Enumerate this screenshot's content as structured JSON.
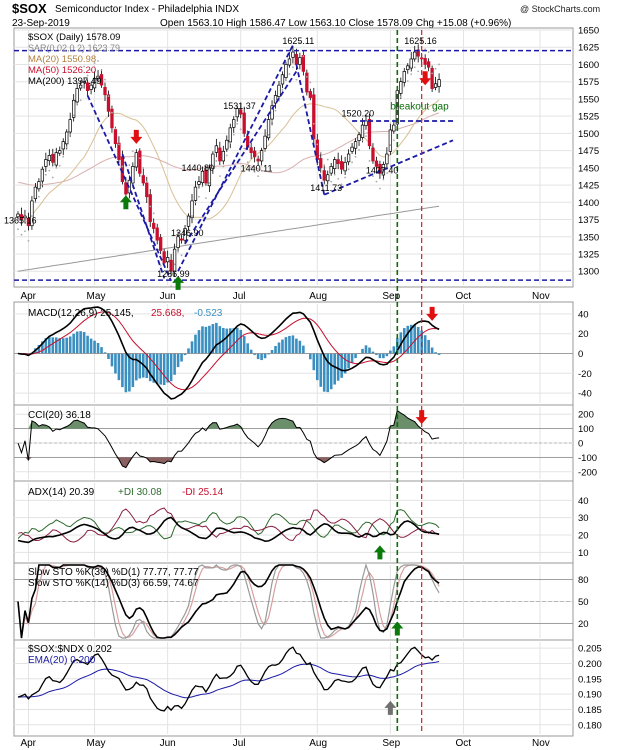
{
  "header": {
    "symbol": "$SOX",
    "index_name": "Semiconductor Index - Philadelphia INDX",
    "watermark": "@ StockCharts.com",
    "date": "23-Sep-2019",
    "ohlc_text": "Open 1563.10  High 1586.47  Low 1563.10  Close 1578.09  Chg +15.08 (+0.96%)"
  },
  "colors": {
    "up": "#2e6b2e",
    "down": "#c8102e",
    "blue": "#1a1aa6",
    "grid": "#e3e3e3",
    "green_dash": "#0a6e0a",
    "red_dash": "#d02020",
    "arrow_green": "#0a7a0a",
    "arrow_red": "#e01010",
    "arrow_gray": "#707070",
    "hist": "#3a8fc0",
    "cci_fill_up": "#6a8f6a",
    "cci_fill_down": "#8a6060"
  },
  "x_axis": {
    "months": [
      {
        "label": "Apr",
        "day": 3
      },
      {
        "label": "May",
        "day": 22
      },
      {
        "label": "Jun",
        "day": 43
      },
      {
        "label": "Jul",
        "day": 64
      },
      {
        "label": "Aug",
        "day": 86
      },
      {
        "label": "Sep",
        "day": 107
      },
      {
        "label": "Oct",
        "day": 128
      },
      {
        "label": "Nov",
        "day": 150
      }
    ],
    "last_day": 121,
    "green_line_day": 109,
    "red_line_day": 116
  },
  "price_panel": {
    "legend": [
      {
        "text": "$SOX (Daily) 1578.09",
        "color": "#000000"
      },
      {
        "text": "SAR(0.02,0.2) 1623.79",
        "color": "#888888"
      },
      {
        "text": "MA(20) 1550.98",
        "color": "#c8a060"
      },
      {
        "text": "MA(50) 1526.20",
        "color": "#c8102e"
      },
      {
        "text": "MA(200) 1397.49",
        "color": "#000000"
      }
    ],
    "ymin": 1280,
    "ymax": 1650,
    "ticks": [
      1300,
      1325,
      1350,
      1375,
      1400,
      1425,
      1450,
      1475,
      1500,
      1525,
      1550,
      1575,
      1600,
      1625,
      1650
    ],
    "annotations": [
      {
        "text": "1365.16",
        "day": 0,
        "value": 1365.16
      },
      {
        "text": "1286.99",
        "day": 44,
        "value": 1286.99
      },
      {
        "text": "1346.90",
        "day": 48,
        "value": 1346.9
      },
      {
        "text": "1440.80",
        "day": 51,
        "value": 1440.8
      },
      {
        "text": "1531.37",
        "day": 63,
        "value": 1531.37
      },
      {
        "text": "1440.11",
        "day": 68,
        "value": 1440.11
      },
      {
        "text": "1625.11",
        "day": 80,
        "value": 1625.11
      },
      {
        "text": "1411.73",
        "day": 88,
        "value": 1411.73
      },
      {
        "text": "1520.20",
        "day": 97,
        "value": 1520.2
      },
      {
        "text": "1437.40",
        "day": 104,
        "value": 1437.4
      },
      {
        "text": "1625.16",
        "day": 115,
        "value": 1625.16
      },
      {
        "text": "breakout gap",
        "day": 111,
        "value": 1535
      }
    ],
    "hlines": [
      1620,
      1286.99
    ],
    "trendlines": [
      {
        "from": [
          20,
          1555
        ],
        "to": [
          44,
          1286
        ]
      },
      {
        "from": [
          30,
          1470
        ],
        "to": [
          42,
          1290
        ]
      },
      {
        "from": [
          46,
          1300
        ],
        "to": [
          79,
          1628
        ]
      },
      {
        "from": [
          48,
          1340
        ],
        "to": [
          80,
          1590
        ]
      },
      {
        "from": [
          80,
          1600
        ],
        "to": [
          88,
          1411
        ]
      },
      {
        "from": [
          88,
          1411
        ],
        "to": [
          125,
          1490
        ]
      },
      {
        "from": [
          96,
          1518
        ],
        "to": [
          125,
          1518
        ]
      }
    ],
    "arrows": [
      {
        "day": 31,
        "value": 1400,
        "dir": "up",
        "color": "arrow_green"
      },
      {
        "day": 34,
        "value": 1495,
        "dir": "down",
        "color": "arrow_red"
      },
      {
        "day": 46,
        "value": 1283,
        "dir": "up",
        "color": "arrow_green"
      },
      {
        "day": 117,
        "value": 1580,
        "dir": "down",
        "color": "arrow_red"
      }
    ],
    "closes": [
      1383,
      1375,
      1380,
      1366,
      1402,
      1422,
      1430,
      1448,
      1462,
      1468,
      1458,
      1472,
      1475,
      1488,
      1502,
      1520,
      1548,
      1565,
      1570,
      1575,
      1562,
      1570,
      1580,
      1583,
      1570,
      1556,
      1532,
      1508,
      1485,
      1462,
      1430,
      1412,
      1432,
      1452,
      1472,
      1442,
      1428,
      1408,
      1372,
      1362,
      1345,
      1330,
      1312,
      1320,
      1300,
      1332,
      1350,
      1345,
      1362,
      1380,
      1402,
      1422,
      1430,
      1445,
      1428,
      1450,
      1470,
      1482,
      1460,
      1474,
      1490,
      1508,
      1520,
      1536,
      1528,
      1500,
      1480,
      1472,
      1466,
      1460,
      1475,
      1496,
      1520,
      1540,
      1555,
      1570,
      1585,
      1600,
      1608,
      1618,
      1600,
      1610,
      1590,
      1560,
      1552,
      1492,
      1462,
      1450,
      1432,
      1440,
      1452,
      1462,
      1456,
      1448,
      1458,
      1470,
      1480,
      1488,
      1498,
      1512,
      1518,
      1482,
      1460,
      1452,
      1442,
      1455,
      1470,
      1505,
      1512,
      1562,
      1575,
      1590,
      1598,
      1608,
      1618,
      1612,
      1608,
      1600,
      1596,
      1565,
      1572,
      1578
    ]
  },
  "macd_panel": {
    "legend": [
      {
        "text": "MACD(12,26,9) 25.145,",
        "color": "#000000"
      },
      {
        "text": "25.668,",
        "color": "#c8102e"
      },
      {
        "text": "-0.523",
        "color": "#3a8fc0"
      }
    ],
    "ymin": -50,
    "ymax": 50,
    "ticks": [
      -40,
      -20,
      0,
      20,
      40
    ],
    "arrow": {
      "day": 119,
      "value": 40
    }
  },
  "cci_panel": {
    "legend": [
      {
        "text": "CCI(20) 36.18",
        "color": "#000000"
      }
    ],
    "ymin": -250,
    "ymax": 250,
    "ticks": [
      -200,
      -100,
      0,
      100,
      200
    ],
    "arrow": {
      "day": 116,
      "value": 180
    }
  },
  "adx_panel": {
    "legend": [
      {
        "text": "ADX(14) 20.39",
        "color": "#000000"
      },
      {
        "text": "+DI 30.08",
        "color": "#2e6b2e"
      },
      {
        "text": "-DI 25.14",
        "color": "#c8102e"
      }
    ],
    "ymin": 5,
    "ymax": 50,
    "ticks": [
      10,
      20,
      30,
      40
    ],
    "arrow": {
      "day": 104,
      "value": 10
    }
  },
  "sto_panel": {
    "legend": [
      {
        "text": "Slow STO %K(39) %D(1) 77.77, 77.77",
        "color": "#000000"
      },
      {
        "text": "Slow STO %K(14) %D(3) 66.59, 74.67",
        "color": "#000000"
      }
    ],
    "ymin": 0,
    "ymax": 100,
    "ticks": [
      20,
      50,
      80
    ],
    "arrow": {
      "day": 109,
      "value": 13
    }
  },
  "ratio_panel": {
    "legend": [
      {
        "text": "$SOX:$NDX 0.202",
        "color": "#000000"
      },
      {
        "text": "EMA(20) 0.200",
        "color": "#1a1aa6"
      }
    ],
    "ymin": 0.177,
    "ymax": 0.207,
    "ticks": [
      0.18,
      0.185,
      0.19,
      0.195,
      0.2,
      0.205
    ],
    "tick_labels": [
      "0.180",
      "0.185",
      "0.190",
      "0.195",
      "0.200",
      "0.205"
    ],
    "arrow": {
      "day": 107,
      "value": 0.1855
    }
  }
}
